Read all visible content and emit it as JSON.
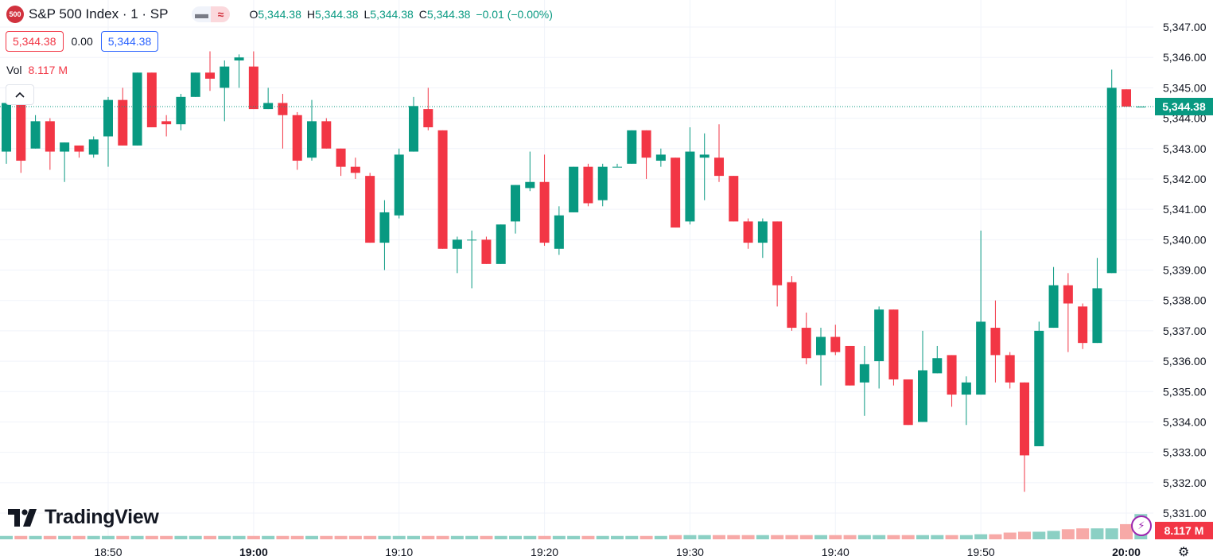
{
  "header": {
    "symbol_badge": "500",
    "title": "S&P 500 Index · 1 · SP",
    "ctrl_minimize": "▬",
    "ctrl_wave": "≈",
    "ohlc": {
      "o_label": "O",
      "o_value": "5,344.38",
      "h_label": "H",
      "h_value": "5,344.38",
      "l_label": "L",
      "l_value": "5,344.38",
      "c_label": "C",
      "c_value": "5,344.38",
      "change": "−0.01 (−0.00%)"
    }
  },
  "quote": {
    "bid": "5,344.38",
    "spread": "0.00",
    "ask": "5,344.38"
  },
  "volume_legend": {
    "label": "Vol",
    "value": "8.117 M"
  },
  "collapse_icon": "^",
  "logo": {
    "text": "TradingView",
    "icon": "tradingview-logo-icon"
  },
  "price_label": "5,344.38",
  "volume_label": "8.117 M",
  "bolt_icon": "⚡",
  "settings_icon": "⚙",
  "colors": {
    "up": "#089981",
    "down": "#f23645",
    "vol_up": "#8bd0c4",
    "vol_down": "#f7a9a7",
    "grid": "#f0f3fa"
  },
  "chart_data": {
    "type": "candlestick",
    "x_unit": "minute",
    "price_axis": {
      "min": 5330.5,
      "max": 5347.25,
      "ticks": [
        5331,
        5332,
        5333,
        5334,
        5335,
        5336,
        5337,
        5338,
        5339,
        5340,
        5341,
        5342,
        5343,
        5344,
        5345,
        5346,
        5347
      ],
      "tick_labels": [
        "5,331.00",
        "5,332.00",
        "5,333.00",
        "5,334.00",
        "5,335.00",
        "5,336.00",
        "5,337.00",
        "5,338.00",
        "5,339.00",
        "5,340.00",
        "5,341.00",
        "5,342.00",
        "5,343.00",
        "5,344.00",
        "5,345.00",
        "5,346.00",
        "5,347.00"
      ]
    },
    "time_axis": {
      "ticks": [
        "18:50",
        "19:00",
        "19:10",
        "19:20",
        "19:30",
        "19:40",
        "19:50",
        "20:00"
      ],
      "bold_ticks": [
        "19:00",
        "20:00"
      ]
    },
    "last_price": 5344.38,
    "candles": [
      {
        "t": "18:43",
        "o": 5342.9,
        "h": 5344.6,
        "l": 5342.5,
        "c": 5344.5
      },
      {
        "t": "18:44",
        "o": 5344.5,
        "h": 5344.6,
        "l": 5342.2,
        "c": 5342.6
      },
      {
        "t": "18:45",
        "o": 5343.0,
        "h": 5344.1,
        "l": 5343.0,
        "c": 5343.9
      },
      {
        "t": "18:46",
        "o": 5343.9,
        "h": 5344.0,
        "l": 5342.3,
        "c": 5342.9
      },
      {
        "t": "18:47",
        "o": 5342.9,
        "h": 5343.2,
        "l": 5341.9,
        "c": 5343.2
      },
      {
        "t": "18:48",
        "o": 5343.1,
        "h": 5343.1,
        "l": 5342.7,
        "c": 5342.9
      },
      {
        "t": "18:49",
        "o": 5342.8,
        "h": 5343.4,
        "l": 5342.7,
        "c": 5343.3
      },
      {
        "t": "18:50",
        "o": 5343.4,
        "h": 5344.7,
        "l": 5342.4,
        "c": 5344.6
      },
      {
        "t": "18:51",
        "o": 5344.6,
        "h": 5345.0,
        "l": 5343.1,
        "c": 5343.1
      },
      {
        "t": "18:52",
        "o": 5343.1,
        "h": 5345.5,
        "l": 5343.1,
        "c": 5345.5
      },
      {
        "t": "18:53",
        "o": 5345.5,
        "h": 5345.5,
        "l": 5343.7,
        "c": 5343.7
      },
      {
        "t": "18:54",
        "o": 5343.9,
        "h": 5344.1,
        "l": 5343.4,
        "c": 5343.8
      },
      {
        "t": "18:55",
        "o": 5343.8,
        "h": 5344.8,
        "l": 5343.6,
        "c": 5344.7
      },
      {
        "t": "18:56",
        "o": 5344.7,
        "h": 5345.5,
        "l": 5344.7,
        "c": 5345.5
      },
      {
        "t": "18:57",
        "o": 5345.5,
        "h": 5346.2,
        "l": 5344.9,
        "c": 5345.3
      },
      {
        "t": "18:58",
        "o": 5345.0,
        "h": 5345.9,
        "l": 5343.9,
        "c": 5345.7
      },
      {
        "t": "18:59",
        "o": 5345.9,
        "h": 5346.1,
        "l": 5345.0,
        "c": 5346.0
      },
      {
        "t": "19:00",
        "o": 5345.7,
        "h": 5346.2,
        "l": 5344.3,
        "c": 5344.3
      },
      {
        "t": "19:01",
        "o": 5344.3,
        "h": 5345.0,
        "l": 5344.3,
        "c": 5344.5
      },
      {
        "t": "19:02",
        "o": 5344.5,
        "h": 5344.8,
        "l": 5343.0,
        "c": 5344.1
      },
      {
        "t": "19:03",
        "o": 5344.1,
        "h": 5344.2,
        "l": 5342.3,
        "c": 5342.6
      },
      {
        "t": "19:04",
        "o": 5342.7,
        "h": 5344.6,
        "l": 5342.6,
        "c": 5343.9
      },
      {
        "t": "19:05",
        "o": 5343.9,
        "h": 5344.0,
        "l": 5343.0,
        "c": 5343.0
      },
      {
        "t": "19:06",
        "o": 5343.0,
        "h": 5343.0,
        "l": 5342.1,
        "c": 5342.4
      },
      {
        "t": "19:07",
        "o": 5342.4,
        "h": 5342.7,
        "l": 5342.0,
        "c": 5342.2
      },
      {
        "t": "19:08",
        "o": 5342.1,
        "h": 5342.2,
        "l": 5339.9,
        "c": 5339.9
      },
      {
        "t": "19:09",
        "o": 5339.9,
        "h": 5341.3,
        "l": 5339.0,
        "c": 5340.9
      },
      {
        "t": "19:10",
        "o": 5340.8,
        "h": 5343.0,
        "l": 5340.7,
        "c": 5342.8
      },
      {
        "t": "19:11",
        "o": 5342.9,
        "h": 5344.7,
        "l": 5342.9,
        "c": 5344.4
      },
      {
        "t": "19:12",
        "o": 5344.3,
        "h": 5345.0,
        "l": 5343.6,
        "c": 5343.7
      },
      {
        "t": "19:13",
        "o": 5343.6,
        "h": 5343.6,
        "l": 5339.7,
        "c": 5339.7
      },
      {
        "t": "19:14",
        "o": 5339.7,
        "h": 5340.1,
        "l": 5338.9,
        "c": 5340.0
      },
      {
        "t": "19:15",
        "o": 5340.0,
        "h": 5340.3,
        "l": 5338.4,
        "c": 5340.0
      },
      {
        "t": "19:16",
        "o": 5340.0,
        "h": 5340.1,
        "l": 5339.2,
        "c": 5339.2
      },
      {
        "t": "19:17",
        "o": 5339.2,
        "h": 5340.5,
        "l": 5339.2,
        "c": 5340.5
      },
      {
        "t": "19:18",
        "o": 5340.6,
        "h": 5341.8,
        "l": 5340.2,
        "c": 5341.8
      },
      {
        "t": "19:19",
        "o": 5341.7,
        "h": 5342.9,
        "l": 5341.6,
        "c": 5341.9
      },
      {
        "t": "19:20",
        "o": 5341.9,
        "h": 5342.8,
        "l": 5339.8,
        "c": 5339.9
      },
      {
        "t": "19:21",
        "o": 5339.7,
        "h": 5341.1,
        "l": 5339.5,
        "c": 5340.8
      },
      {
        "t": "19:22",
        "o": 5340.9,
        "h": 5342.4,
        "l": 5340.9,
        "c": 5342.4
      },
      {
        "t": "19:23",
        "o": 5342.4,
        "h": 5342.5,
        "l": 5341.1,
        "c": 5341.2
      },
      {
        "t": "19:24",
        "o": 5341.3,
        "h": 5342.5,
        "l": 5341.1,
        "c": 5342.4
      },
      {
        "t": "19:25",
        "o": 5342.4,
        "h": 5342.5,
        "l": 5342.4,
        "c": 5342.4
      },
      {
        "t": "19:26",
        "o": 5342.5,
        "h": 5343.6,
        "l": 5342.5,
        "c": 5343.6
      },
      {
        "t": "19:27",
        "o": 5343.6,
        "h": 5343.6,
        "l": 5342.0,
        "c": 5342.7
      },
      {
        "t": "19:28",
        "o": 5342.6,
        "h": 5343.0,
        "l": 5342.4,
        "c": 5342.8
      },
      {
        "t": "19:29",
        "o": 5342.7,
        "h": 5342.7,
        "l": 5340.4,
        "c": 5340.4
      },
      {
        "t": "19:30",
        "o": 5340.6,
        "h": 5343.7,
        "l": 5340.5,
        "c": 5342.9
      },
      {
        "t": "19:31",
        "o": 5342.7,
        "h": 5343.5,
        "l": 5341.3,
        "c": 5342.8
      },
      {
        "t": "19:32",
        "o": 5342.7,
        "h": 5343.8,
        "l": 5341.9,
        "c": 5342.1
      },
      {
        "t": "19:33",
        "o": 5342.1,
        "h": 5342.1,
        "l": 5340.6,
        "c": 5340.6
      },
      {
        "t": "19:34",
        "o": 5340.6,
        "h": 5340.7,
        "l": 5339.7,
        "c": 5339.9
      },
      {
        "t": "19:35",
        "o": 5339.9,
        "h": 5340.7,
        "l": 5339.4,
        "c": 5340.6
      },
      {
        "t": "19:36",
        "o": 5340.6,
        "h": 5340.6,
        "l": 5337.8,
        "c": 5338.5
      },
      {
        "t": "19:37",
        "o": 5338.6,
        "h": 5338.8,
        "l": 5337.0,
        "c": 5337.1
      },
      {
        "t": "19:38",
        "o": 5337.1,
        "h": 5337.6,
        "l": 5335.9,
        "c": 5336.1
      },
      {
        "t": "19:39",
        "o": 5336.2,
        "h": 5337.1,
        "l": 5335.2,
        "c": 5336.8
      },
      {
        "t": "19:40",
        "o": 5336.8,
        "h": 5337.2,
        "l": 5336.2,
        "c": 5336.3
      },
      {
        "t": "19:41",
        "o": 5336.5,
        "h": 5336.5,
        "l": 5335.2,
        "c": 5335.2
      },
      {
        "t": "19:42",
        "o": 5335.3,
        "h": 5336.5,
        "l": 5334.2,
        "c": 5335.9
      },
      {
        "t": "19:43",
        "o": 5336.0,
        "h": 5337.8,
        "l": 5335.1,
        "c": 5337.7
      },
      {
        "t": "19:44",
        "o": 5337.7,
        "h": 5337.7,
        "l": 5335.2,
        "c": 5335.4
      },
      {
        "t": "19:45",
        "o": 5335.4,
        "h": 5335.4,
        "l": 5333.9,
        "c": 5333.9
      },
      {
        "t": "19:46",
        "o": 5334.0,
        "h": 5337.0,
        "l": 5334.0,
        "c": 5335.7
      },
      {
        "t": "19:47",
        "o": 5335.6,
        "h": 5336.5,
        "l": 5335.6,
        "c": 5336.1
      },
      {
        "t": "19:48",
        "o": 5336.2,
        "h": 5336.2,
        "l": 5334.5,
        "c": 5334.9
      },
      {
        "t": "19:49",
        "o": 5334.9,
        "h": 5335.5,
        "l": 5333.9,
        "c": 5335.3
      },
      {
        "t": "19:50",
        "o": 5334.9,
        "h": 5340.3,
        "l": 5334.9,
        "c": 5337.3
      },
      {
        "t": "19:51",
        "o": 5337.1,
        "h": 5338.0,
        "l": 5335.3,
        "c": 5336.2
      },
      {
        "t": "19:52",
        "o": 5336.2,
        "h": 5336.3,
        "l": 5335.1,
        "c": 5335.3
      },
      {
        "t": "19:53",
        "o": 5335.3,
        "h": 5335.3,
        "l": 5331.7,
        "c": 5332.9
      },
      {
        "t": "19:54",
        "o": 5333.2,
        "h": 5337.3,
        "l": 5333.2,
        "c": 5337.0
      },
      {
        "t": "19:55",
        "o": 5337.1,
        "h": 5339.1,
        "l": 5337.1,
        "c": 5338.5
      },
      {
        "t": "19:56",
        "o": 5338.5,
        "h": 5338.9,
        "l": 5336.3,
        "c": 5337.9
      },
      {
        "t": "19:57",
        "o": 5337.8,
        "h": 5337.9,
        "l": 5336.4,
        "c": 5336.6
      },
      {
        "t": "19:58",
        "o": 5336.6,
        "h": 5339.4,
        "l": 5336.6,
        "c": 5338.4
      },
      {
        "t": "19:59",
        "o": 5338.9,
        "h": 5345.6,
        "l": 5338.9,
        "c": 5345.0
      },
      {
        "t": "20:00",
        "o": 5344.95,
        "h": 5344.95,
        "l": 5344.38,
        "c": 5344.38
      },
      {
        "t": "20:01",
        "o": 5344.38,
        "h": 5344.38,
        "l": 5344.38,
        "c": 5344.38
      }
    ],
    "volume_unit": "M",
    "volumes": [
      0.2,
      0.2,
      0.2,
      0.2,
      0.2,
      0.2,
      0.2,
      0.2,
      0.2,
      0.2,
      0.2,
      0.2,
      0.2,
      0.2,
      0.2,
      0.2,
      0.2,
      0.2,
      0.2,
      0.2,
      0.2,
      0.2,
      0.2,
      0.2,
      0.2,
      0.2,
      0.2,
      0.2,
      0.2,
      0.2,
      0.2,
      0.2,
      0.2,
      0.2,
      0.2,
      0.2,
      0.2,
      0.2,
      0.2,
      0.2,
      0.2,
      0.2,
      0.2,
      0.2,
      0.2,
      0.2,
      0.25,
      0.25,
      0.25,
      0.25,
      0.25,
      0.25,
      0.25,
      0.25,
      0.25,
      0.25,
      0.25,
      0.25,
      0.25,
      0.25,
      0.25,
      0.25,
      0.25,
      0.25,
      0.25,
      0.25,
      0.25,
      0.3,
      0.3,
      0.4,
      0.45,
      0.45,
      0.5,
      0.6,
      0.65,
      0.65,
      0.65,
      0.9,
      1.5,
      8.117,
      0.02
    ]
  }
}
